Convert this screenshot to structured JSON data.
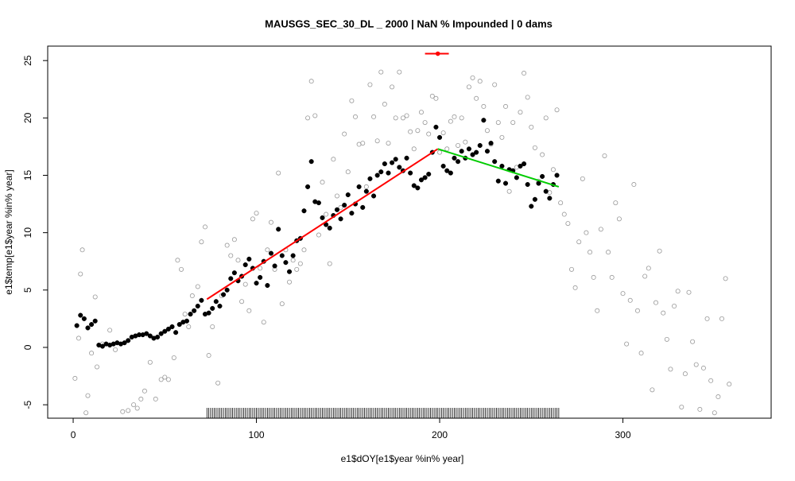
{
  "chart_data": {
    "type": "scatter",
    "title": "MAUSGS_SEC_30_DL _ 2000   |   NaN  % Impounded |  0  dams",
    "x_label": "e1$dOY[e1$year %in% year]",
    "y_label": "e1$temp[e1$year %in% year]",
    "xlim": [
      -13.9,
      380.9
    ],
    "ylim": [
      -6.17,
      26.26
    ],
    "xticks": [
      0,
      100,
      200,
      300
    ],
    "yticks": [
      -5,
      0,
      5,
      10,
      15,
      20,
      25
    ],
    "series": [
      {
        "color": "#999999",
        "marker": "open",
        "x": [
          1,
          3,
          4,
          5,
          7,
          8,
          10,
          12,
          13,
          16,
          20,
          23,
          27,
          30,
          33,
          35,
          37,
          39,
          42,
          45,
          48,
          50,
          52,
          55,
          57,
          59,
          61,
          63,
          65,
          68,
          70,
          72,
          74,
          76,
          79,
          81,
          84,
          86,
          88,
          90,
          92,
          94,
          96,
          98,
          100,
          102,
          104,
          106,
          108,
          110,
          112,
          114,
          116,
          118,
          120,
          122,
          124,
          126,
          128,
          130,
          132,
          134,
          136,
          138,
          140,
          142,
          144,
          146,
          148,
          150,
          152,
          154,
          156,
          158,
          160,
          162,
          164,
          166,
          168,
          170,
          172,
          174,
          176,
          178,
          180,
          182,
          184,
          186,
          188,
          190,
          192,
          194,
          196,
          198,
          200,
          202,
          204,
          206,
          208,
          210,
          212,
          214,
          216,
          218,
          220,
          222,
          224,
          226,
          228,
          230,
          232,
          234,
          236,
          238,
          240,
          242,
          244,
          246,
          248,
          250,
          252,
          254,
          256,
          258,
          260,
          262,
          264,
          266,
          268,
          270,
          272,
          274,
          276,
          278,
          280,
          282,
          284,
          286,
          288,
          290,
          292,
          294,
          296,
          298,
          300,
          302,
          304,
          306,
          308,
          310,
          312,
          314,
          316,
          318,
          320,
          322,
          324,
          326,
          328,
          330,
          332,
          334,
          336,
          338,
          340,
          342,
          344,
          346,
          348,
          350,
          352,
          354,
          356,
          358
        ],
        "y": [
          -2.7,
          0.8,
          6.4,
          8.5,
          -5.7,
          -4.2,
          -0.5,
          4.4,
          -1.7,
          0.3,
          1.5,
          -0.2,
          -5.6,
          -5.5,
          -5.0,
          -5.3,
          -4.5,
          -3.8,
          -1.3,
          -4.5,
          -2.8,
          -2.6,
          -2.8,
          -0.9,
          7.6,
          6.8,
          2.9,
          1.8,
          4.5,
          5.3,
          9.2,
          10.5,
          -0.7,
          1.8,
          -3.1,
          4.5,
          8.9,
          8.0,
          9.4,
          7.6,
          4.0,
          5.5,
          3.2,
          11.2,
          11.7,
          6.9,
          2.2,
          8.5,
          10.9,
          6.8,
          15.2,
          3.8,
          8.5,
          5.7,
          7.6,
          6.8,
          7.3,
          8.5,
          20.0,
          23.2,
          20.2,
          9.8,
          14.4,
          11.6,
          7.3,
          16.4,
          13.2,
          12.2,
          18.6,
          15.3,
          21.5,
          20.1,
          17.7,
          17.8,
          14.0,
          22.9,
          20.1,
          18.0,
          24.0,
          21.2,
          17.8,
          22.7,
          20.0,
          24.0,
          20.0,
          20.2,
          18.8,
          17.3,
          18.9,
          20.5,
          19.6,
          18.6,
          21.9,
          21.7,
          17.0,
          18.7,
          17.3,
          19.7,
          20.1,
          17.6,
          20.0,
          17.9,
          22.7,
          23.5,
          21.7,
          23.2,
          21.0,
          18.9,
          17.7,
          22.9,
          19.6,
          18.3,
          21.0,
          13.6,
          19.6,
          15.7,
          20.5,
          23.9,
          21.8,
          19.2,
          17.4,
          14.5,
          16.8,
          20.0,
          13.5,
          15.5,
          20.7,
          12.6,
          11.6,
          10.8,
          6.8,
          5.2,
          9.2,
          14.7,
          10.0,
          8.3,
          6.1,
          3.2,
          10.3,
          16.7,
          8.3,
          6.1,
          12.6,
          11.2,
          4.7,
          0.3,
          4.1,
          14.2,
          3.2,
          -0.5,
          6.2,
          6.9,
          -3.7,
          3.9,
          8.4,
          3.0,
          0.7,
          -1.9,
          3.6,
          4.9,
          -5.2,
          -2.3,
          4.8,
          0.5,
          -1.5,
          -5.4,
          -1.8,
          2.5,
          -2.9,
          -5.7,
          -4.3,
          2.5,
          6.0,
          -3.2
        ]
      },
      {
        "color": "#000000",
        "marker": "filled",
        "x": [
          2,
          4,
          6,
          8,
          10,
          12,
          14,
          16,
          18,
          20,
          22,
          24,
          26,
          28,
          30,
          32,
          34,
          36,
          38,
          40,
          42,
          44,
          46,
          48,
          50,
          52,
          54,
          56,
          58,
          60,
          62,
          64,
          66,
          68,
          70,
          72,
          74,
          76,
          78,
          80,
          82,
          84,
          86,
          88,
          90,
          92,
          94,
          96,
          98,
          100,
          102,
          104,
          106,
          108,
          110,
          112,
          114,
          116,
          118,
          120,
          122,
          124,
          126,
          128,
          130,
          132,
          134,
          136,
          138,
          140,
          142,
          144,
          146,
          148,
          150,
          152,
          154,
          156,
          158,
          160,
          162,
          164,
          166,
          168,
          170,
          172,
          174,
          176,
          178,
          180,
          182,
          184,
          186,
          188,
          190,
          192,
          194,
          196,
          198,
          200,
          202,
          204,
          206,
          208,
          210,
          212,
          214,
          216,
          218,
          220,
          222,
          224,
          226,
          228,
          230,
          232,
          234,
          236,
          238,
          240,
          242,
          244,
          246,
          248,
          250,
          252,
          254,
          256,
          258,
          260,
          262,
          264
        ],
        "y": [
          1.9,
          2.8,
          2.5,
          1.7,
          2.0,
          2.3,
          0.2,
          0.1,
          0.3,
          0.2,
          0.3,
          0.4,
          0.3,
          0.4,
          0.6,
          0.9,
          1.0,
          1.1,
          1.1,
          1.2,
          1.0,
          0.8,
          0.9,
          1.2,
          1.4,
          1.6,
          1.8,
          1.3,
          2.0,
          2.2,
          2.3,
          2.9,
          3.2,
          3.6,
          4.1,
          2.9,
          3.0,
          3.4,
          4.0,
          3.6,
          4.6,
          5.0,
          6.0,
          6.5,
          5.8,
          6.2,
          7.2,
          7.7,
          6.9,
          5.6,
          6.1,
          7.5,
          5.4,
          8.2,
          7.1,
          10.3,
          8.0,
          7.4,
          6.6,
          8.0,
          9.3,
          9.5,
          11.9,
          14.0,
          16.2,
          12.7,
          12.6,
          11.3,
          10.7,
          10.4,
          11.5,
          12.0,
          11.2,
          12.4,
          13.3,
          11.7,
          12.5,
          14.0,
          12.2,
          13.6,
          14.7,
          13.2,
          15.0,
          15.3,
          16.0,
          15.2,
          16.1,
          16.4,
          15.7,
          15.4,
          16.5,
          15.2,
          14.1,
          13.9,
          14.6,
          14.8,
          15.1,
          17.0,
          19.2,
          18.3,
          15.8,
          15.4,
          15.2,
          16.5,
          16.2,
          17.1,
          16.5,
          17.3,
          16.8,
          17.0,
          17.6,
          19.8,
          17.1,
          17.8,
          16.2,
          14.5,
          15.8,
          14.3,
          15.5,
          15.4,
          14.8,
          15.8,
          16.0,
          14.2,
          12.3,
          12.9,
          14.3,
          14.9,
          13.6,
          13.0,
          14.2,
          15.0
        ]
      }
    ],
    "lines": [
      {
        "color": "#ff0000",
        "x": [
          73,
          199
        ],
        "y": [
          4.2,
          17.3
        ]
      },
      {
        "color": "#00cc00",
        "x": [
          199,
          265
        ],
        "y": [
          17.3,
          14.0
        ]
      }
    ],
    "top_point": {
      "color": "#ff0000",
      "x": 199,
      "y": 25.6,
      "x_low": 192,
      "x_high": 205
    },
    "rug_x": [
      73,
      74,
      75,
      76,
      77,
      78,
      79,
      80,
      81,
      82,
      83,
      84,
      85,
      86,
      87,
      88,
      89,
      90,
      91,
      92,
      93,
      94,
      95,
      96,
      97,
      98,
      99,
      100,
      101,
      102,
      103,
      104,
      105,
      106,
      107,
      108,
      109,
      110,
      111,
      112,
      113,
      114,
      115,
      116,
      117,
      118,
      119,
      120,
      121,
      122,
      123,
      124,
      125,
      126,
      127,
      128,
      129,
      130,
      131,
      132,
      133,
      134,
      135,
      136,
      137,
      138,
      139,
      140,
      141,
      142,
      143,
      144,
      145,
      146,
      147,
      148,
      149,
      150,
      151,
      152,
      153,
      154,
      155,
      156,
      157,
      158,
      159,
      160,
      161,
      162,
      163,
      164,
      165,
      166,
      167,
      168,
      169,
      170,
      171,
      172,
      173,
      174,
      175,
      176,
      177,
      178,
      179,
      180,
      181,
      182,
      183,
      184,
      185,
      186,
      187,
      188,
      189,
      190,
      191,
      192,
      193,
      194,
      195,
      196,
      197,
      198,
      199,
      200,
      201,
      202,
      203,
      204,
      205,
      206,
      207,
      208,
      209,
      210,
      211,
      212,
      213,
      214,
      215,
      216,
      217,
      218,
      219,
      220,
      221,
      222,
      223,
      224,
      225,
      226,
      227,
      228,
      229,
      230,
      231,
      232,
      233,
      234,
      235,
      236,
      237,
      238,
      239,
      240,
      241,
      242,
      243,
      244,
      245,
      246,
      247,
      248,
      249,
      250,
      251,
      252,
      253,
      254,
      255,
      256,
      257,
      258,
      259,
      260,
      261,
      262,
      263,
      264,
      265
    ]
  }
}
